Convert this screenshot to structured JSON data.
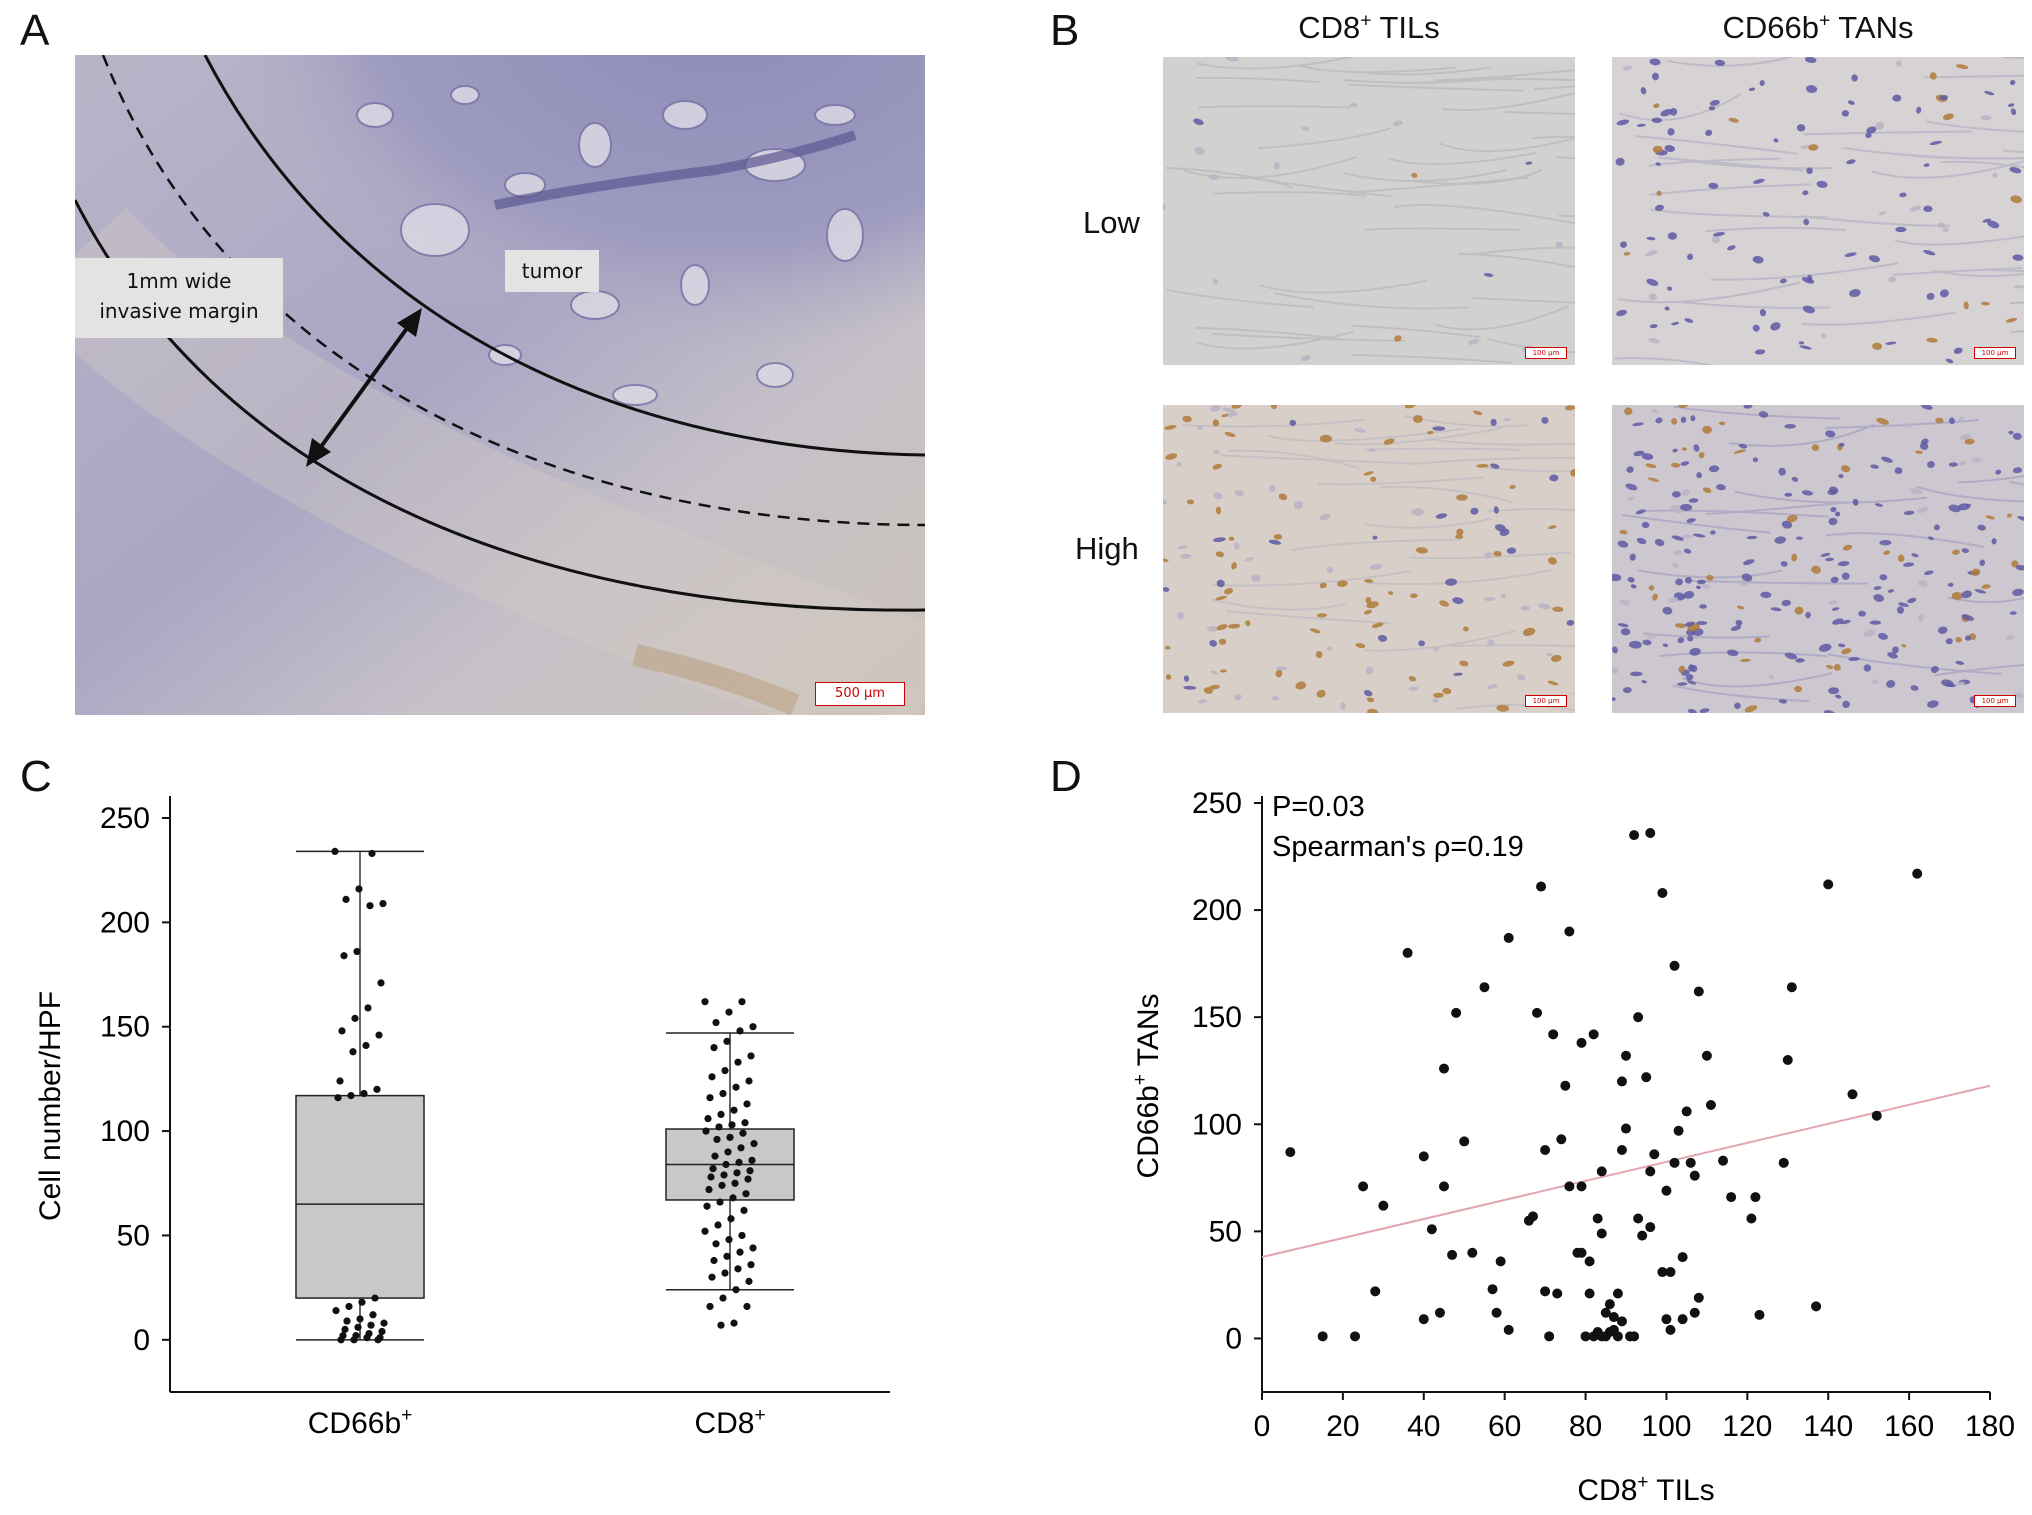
{
  "panels": {
    "a_letter": "A",
    "b_letter": "B",
    "c_letter": "C",
    "d_letter": "D"
  },
  "panel_a": {
    "margin_label_line1": "1mm wide",
    "margin_label_line2": "invasive  margin",
    "tumor_label": "tumor",
    "scale_bar": "500 μm"
  },
  "panel_b": {
    "col1_main": "CD8",
    "col1_sup": "+",
    "col1_tail": " TILs",
    "col2_main": "CD66b",
    "col2_sup": "+",
    "col2_tail": " TANs",
    "row1": "Low",
    "row2": "High",
    "scale_bar": "100 μm"
  },
  "colors": {
    "tissue_bg": "#c9c4cd",
    "tissue_purple": "#8d8ab3",
    "stain_brown": "#b07a3a",
    "box_fill": "#c8c8c8",
    "regression_line": "#e4a4ae"
  },
  "chart_data": [
    {
      "type": "box",
      "ylabel": "Cell number/HPF",
      "ylim": [
        -25,
        250
      ],
      "yticks": [
        0,
        50,
        100,
        150,
        200,
        250
      ],
      "categories": [
        {
          "main": "CD66b",
          "sup": "+"
        },
        {
          "main": "CD8",
          "sup": "+"
        }
      ],
      "boxes": [
        {
          "min": 0,
          "q1": 20,
          "median": 65,
          "q3": 117,
          "max": 234
        },
        {
          "min": 24,
          "q1": 67,
          "median": 84,
          "q3": 101,
          "max": 147
        }
      ],
      "points": [
        [
          234,
          233,
          216,
          211,
          209,
          208,
          186,
          184,
          171,
          159,
          154,
          148,
          146,
          141,
          138,
          124,
          120,
          118,
          117,
          116,
          20,
          18,
          16,
          14,
          12,
          10,
          9,
          8,
          7,
          6,
          5,
          4,
          3,
          2,
          2,
          1,
          1,
          0,
          0,
          0
        ],
        [
          162,
          162,
          157,
          152,
          150,
          148,
          143,
          140,
          136,
          133,
          129,
          126,
          124,
          121,
          118,
          116,
          113,
          110,
          108,
          106,
          104,
          103,
          102,
          100,
          99,
          97,
          96,
          94,
          92,
          90,
          88,
          86,
          85,
          84,
          82,
          81,
          80,
          79,
          78,
          77,
          75,
          74,
          72,
          70,
          68,
          66,
          64,
          62,
          58,
          55,
          52,
          50,
          48,
          46,
          44,
          42,
          40,
          38,
          36,
          34,
          32,
          30,
          28,
          24,
          20,
          16,
          16,
          8,
          7
        ]
      ]
    },
    {
      "type": "scatter",
      "xlabel_main": "CD8",
      "xlabel_sup": "+",
      "xlabel_tail": " TILs",
      "ylabel_main": "CD66b",
      "ylabel_sup": "+",
      "ylabel_tail": " TANs",
      "xlim": [
        0,
        180
      ],
      "ylim": [
        -25,
        250
      ],
      "xticks": [
        0,
        20,
        40,
        60,
        80,
        100,
        120,
        140,
        160,
        180
      ],
      "yticks": [
        0,
        50,
        100,
        150,
        200,
        250
      ],
      "annotations": [
        "P=0.03",
        "Spearman's ρ=0.19"
      ],
      "regression": {
        "x": [
          0,
          180
        ],
        "y": [
          38,
          118
        ]
      },
      "points": [
        [
          7,
          87
        ],
        [
          15,
          1
        ],
        [
          23,
          1
        ],
        [
          25,
          71
        ],
        [
          28,
          22
        ],
        [
          30,
          62
        ],
        [
          36,
          180
        ],
        [
          40,
          9
        ],
        [
          40,
          85
        ],
        [
          42,
          51
        ],
        [
          44,
          12
        ],
        [
          45,
          71
        ],
        [
          45,
          126
        ],
        [
          47,
          39
        ],
        [
          48,
          152
        ],
        [
          50,
          92
        ],
        [
          52,
          40
        ],
        [
          55,
          164
        ],
        [
          57,
          23
        ],
        [
          58,
          12
        ],
        [
          59,
          36
        ],
        [
          61,
          4
        ],
        [
          61,
          187
        ],
        [
          66,
          55
        ],
        [
          67,
          57
        ],
        [
          68,
          152
        ],
        [
          69,
          211
        ],
        [
          70,
          88
        ],
        [
          70,
          22
        ],
        [
          71,
          1
        ],
        [
          72,
          142
        ],
        [
          73,
          21
        ],
        [
          74,
          93
        ],
        [
          75,
          118
        ],
        [
          76,
          71
        ],
        [
          76,
          190
        ],
        [
          78,
          40
        ],
        [
          79,
          71
        ],
        [
          79,
          138
        ],
        [
          79,
          40
        ],
        [
          80,
          1
        ],
        [
          81,
          21
        ],
        [
          81,
          36
        ],
        [
          82,
          1
        ],
        [
          82,
          142
        ],
        [
          83,
          3
        ],
        [
          83,
          56
        ],
        [
          84,
          1
        ],
        [
          84,
          49
        ],
        [
          84,
          78
        ],
        [
          85,
          1
        ],
        [
          85,
          12
        ],
        [
          86,
          3
        ],
        [
          86,
          16
        ],
        [
          87,
          4
        ],
        [
          87,
          10
        ],
        [
          88,
          1
        ],
        [
          88,
          21
        ],
        [
          89,
          120
        ],
        [
          89,
          88
        ],
        [
          89,
          8
        ],
        [
          90,
          132
        ],
        [
          90,
          98
        ],
        [
          91,
          1
        ],
        [
          92,
          1
        ],
        [
          92,
          235
        ],
        [
          93,
          150
        ],
        [
          93,
          56
        ],
        [
          94,
          48
        ],
        [
          95,
          122
        ],
        [
          96,
          236
        ],
        [
          96,
          52
        ],
        [
          96,
          78
        ],
        [
          97,
          86
        ],
        [
          99,
          31
        ],
        [
          99,
          208
        ],
        [
          100,
          69
        ],
        [
          100,
          9
        ],
        [
          101,
          31
        ],
        [
          101,
          4
        ],
        [
          102,
          82
        ],
        [
          102,
          174
        ],
        [
          103,
          97
        ],
        [
          104,
          9
        ],
        [
          104,
          38
        ],
        [
          105,
          106
        ],
        [
          106,
          82
        ],
        [
          107,
          12
        ],
        [
          107,
          76
        ],
        [
          108,
          162
        ],
        [
          108,
          19
        ],
        [
          110,
          132
        ],
        [
          111,
          109
        ],
        [
          114,
          83
        ],
        [
          116,
          66
        ],
        [
          121,
          56
        ],
        [
          122,
          66
        ],
        [
          123,
          11
        ],
        [
          129,
          82
        ],
        [
          130,
          130
        ],
        [
          131,
          164
        ],
        [
          137,
          15
        ],
        [
          140,
          212
        ],
        [
          146,
          114
        ],
        [
          152,
          104
        ],
        [
          162,
          217
        ]
      ]
    }
  ]
}
